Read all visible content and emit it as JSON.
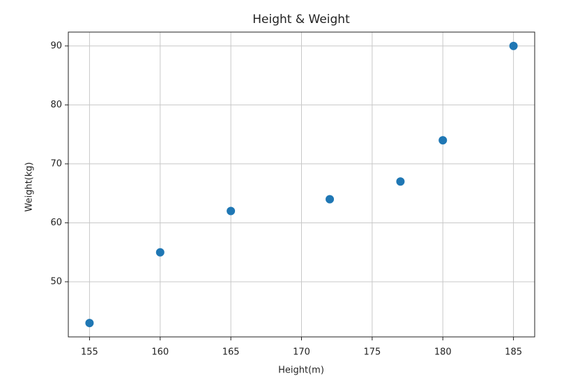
{
  "chart_data": {
    "type": "scatter",
    "title": "Height & Weight",
    "xlabel": "Height(m)",
    "ylabel": "Weight(kg)",
    "x": [
      155,
      160,
      165,
      172,
      177,
      180,
      185
    ],
    "values": [
      43,
      55,
      62,
      64,
      67,
      74,
      90
    ],
    "color": "#1f77b4",
    "xlim": [
      153.5,
      186.5
    ],
    "ylim": [
      40.65,
      92.35
    ],
    "xticks": [
      155,
      160,
      165,
      170,
      175,
      180,
      185
    ],
    "yticks": [
      50,
      60,
      70,
      80,
      90
    ],
    "grid": true
  }
}
